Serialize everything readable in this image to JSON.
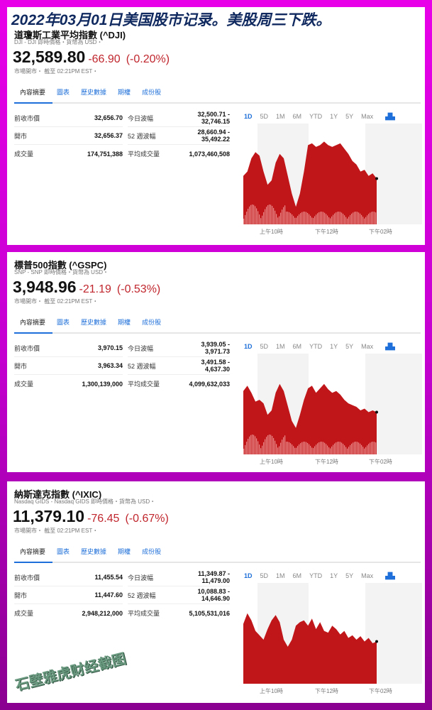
{
  "headline": "2022年03月01日美国股市记录。美股周三下跌。",
  "tabs": [
    "內容摘要",
    "圖表",
    "歷史數據",
    "期權",
    "成份股"
  ],
  "ranges": [
    "1D",
    "5D",
    "1M",
    "6M",
    "YTD",
    "1Y",
    "5Y",
    "Max"
  ],
  "chart_icon": "area-chart-icon",
  "x_labels": [
    "上午10時",
    "下午12時",
    "下午02時"
  ],
  "labels": {
    "prev_close": "前收市價",
    "open": "開市",
    "volume": "成交量",
    "day_range": "今日波幅",
    "week52": "52 週波幅",
    "avg_volume": "平均成交量"
  },
  "colors": {
    "down": "#c0262d",
    "accent": "#1e6fd9",
    "area": "#c0161a"
  },
  "indices": [
    {
      "title": "道瓊斯工業平均指數 (^DJI)",
      "sub": "DJI - DJI 即時價格・貨幣為 USD・",
      "price": "32,589.80",
      "change": "-66.90",
      "pct": "(-0.20%)",
      "status": "市場開市・ 截至 02:21PM EST・",
      "prev_close": "32,656.70",
      "open": "32,656.37",
      "volume": "174,751,388",
      "day_range_lo": "32,500.71 -",
      "day_range_hi": "32,746.15",
      "week52_lo": "28,660.94 -",
      "week52_hi": "35,492.22",
      "avg_volume": "1,073,460,508"
    },
    {
      "title": "標普500指數 (^GSPC)",
      "sub": "SNP - SNP 即時價格・貨幣為 USD・",
      "price": "3,948.96",
      "change": "-21.19",
      "pct": "(-0.53%)",
      "status": "市場開市・ 截至 02:21PM EST・",
      "prev_close": "3,970.15",
      "open": "3,963.34",
      "volume": "1,300,139,000",
      "day_range_lo": "3,939.05 -",
      "day_range_hi": "3,971.73",
      "week52_lo": "3,491.58 -",
      "week52_hi": "4,637.30",
      "avg_volume": "4,099,632,033"
    },
    {
      "title": "納斯達克指數 (^IXIC)",
      "sub": "Nasdaq GIDS - Nasdaq GIDS 即時價格・貨幣為 USD・",
      "price": "11,379.10",
      "change": "-76.45",
      "pct": "(-0.67%)",
      "status": "市場開市・ 截至 02:21PM EST・",
      "prev_close": "11,455.54",
      "open": "11,447.60",
      "volume": "2,948,212,000",
      "day_range_lo": "11,349.87 -",
      "day_range_hi": "11,479.00",
      "week52_lo": "10,088.83 -",
      "week52_hi": "14,646.90",
      "avg_volume": "5,105,531,016"
    }
  ],
  "watermark": "石壁雅虎财经截图"
}
